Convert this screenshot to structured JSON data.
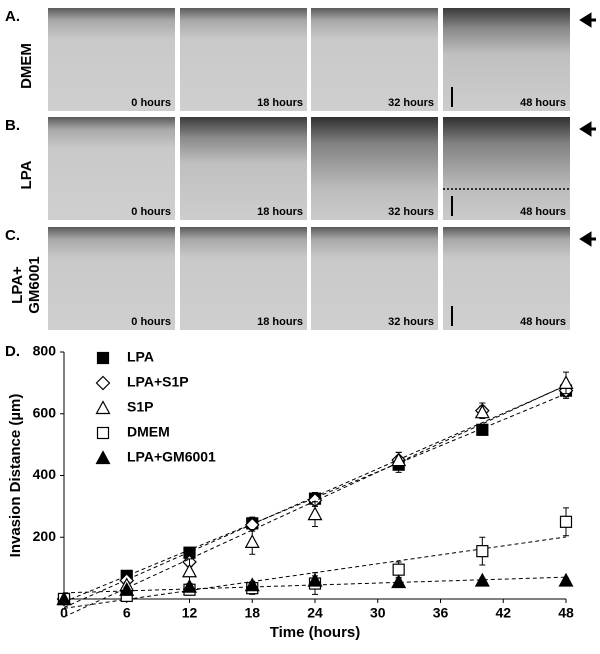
{
  "panels": [
    {
      "label": "A.",
      "condition": [
        "DMEM"
      ],
      "times": [
        "0 hours",
        "18 hours",
        "32 hours",
        "48 hours"
      ]
    },
    {
      "label": "B.",
      "condition": [
        "LPA"
      ],
      "times": [
        "0 hours",
        "18 hours",
        "32 hours",
        "48 hours"
      ]
    },
    {
      "label": "C.",
      "condition": [
        "LPA+",
        "GM6001"
      ],
      "times": [
        "0 hours",
        "18 hours",
        "32 hours",
        "48 hours"
      ]
    }
  ],
  "chart_data": {
    "type": "scatter",
    "panel_label": "D.",
    "x_label": "Time (hours)",
    "y_label": "Invasion Distance (µm)",
    "x": [
      0,
      6,
      12,
      18,
      24,
      32,
      40,
      48
    ],
    "xlim": [
      0,
      48
    ],
    "xticks": [
      0,
      6,
      12,
      18,
      24,
      30,
      36,
      42,
      48
    ],
    "ylim": [
      0,
      800
    ],
    "yticks": [
      200,
      400,
      600,
      800
    ],
    "trendline": true,
    "series": [
      {
        "name": "LPA",
        "color": "#000000",
        "marker": "square-filled",
        "values": [
          0,
          75,
          150,
          245,
          325,
          435,
          548,
          675
        ],
        "errors": [
          0,
          8,
          10,
          20,
          20,
          25,
          15,
          20
        ]
      },
      {
        "name": "LPA+S1P",
        "color": "#000000",
        "marker": "diamond-open",
        "values": [
          0,
          60,
          120,
          240,
          320,
          450,
          610,
          675
        ],
        "errors": [
          0,
          10,
          15,
          20,
          20,
          25,
          25,
          25
        ]
      },
      {
        "name": "S1P",
        "color": "#000000",
        "marker": "triangle-open",
        "values": [
          0,
          45,
          90,
          185,
          275,
          450,
          605,
          700
        ],
        "errors": [
          0,
          10,
          40,
          40,
          40,
          25,
          20,
          35
        ]
      },
      {
        "name": "DMEM",
        "color": "#000000",
        "marker": "square-open",
        "values": [
          0,
          10,
          30,
          35,
          50,
          95,
          155,
          250
        ],
        "errors": [
          0,
          5,
          15,
          20,
          35,
          25,
          45,
          45
        ]
      },
      {
        "name": "LPA+GM6001",
        "color": "#000000",
        "marker": "triangle-filled",
        "values": [
          0,
          30,
          40,
          45,
          60,
          55,
          60,
          60
        ],
        "errors": [
          0,
          8,
          10,
          10,
          15,
          10,
          8,
          8
        ]
      }
    ]
  }
}
